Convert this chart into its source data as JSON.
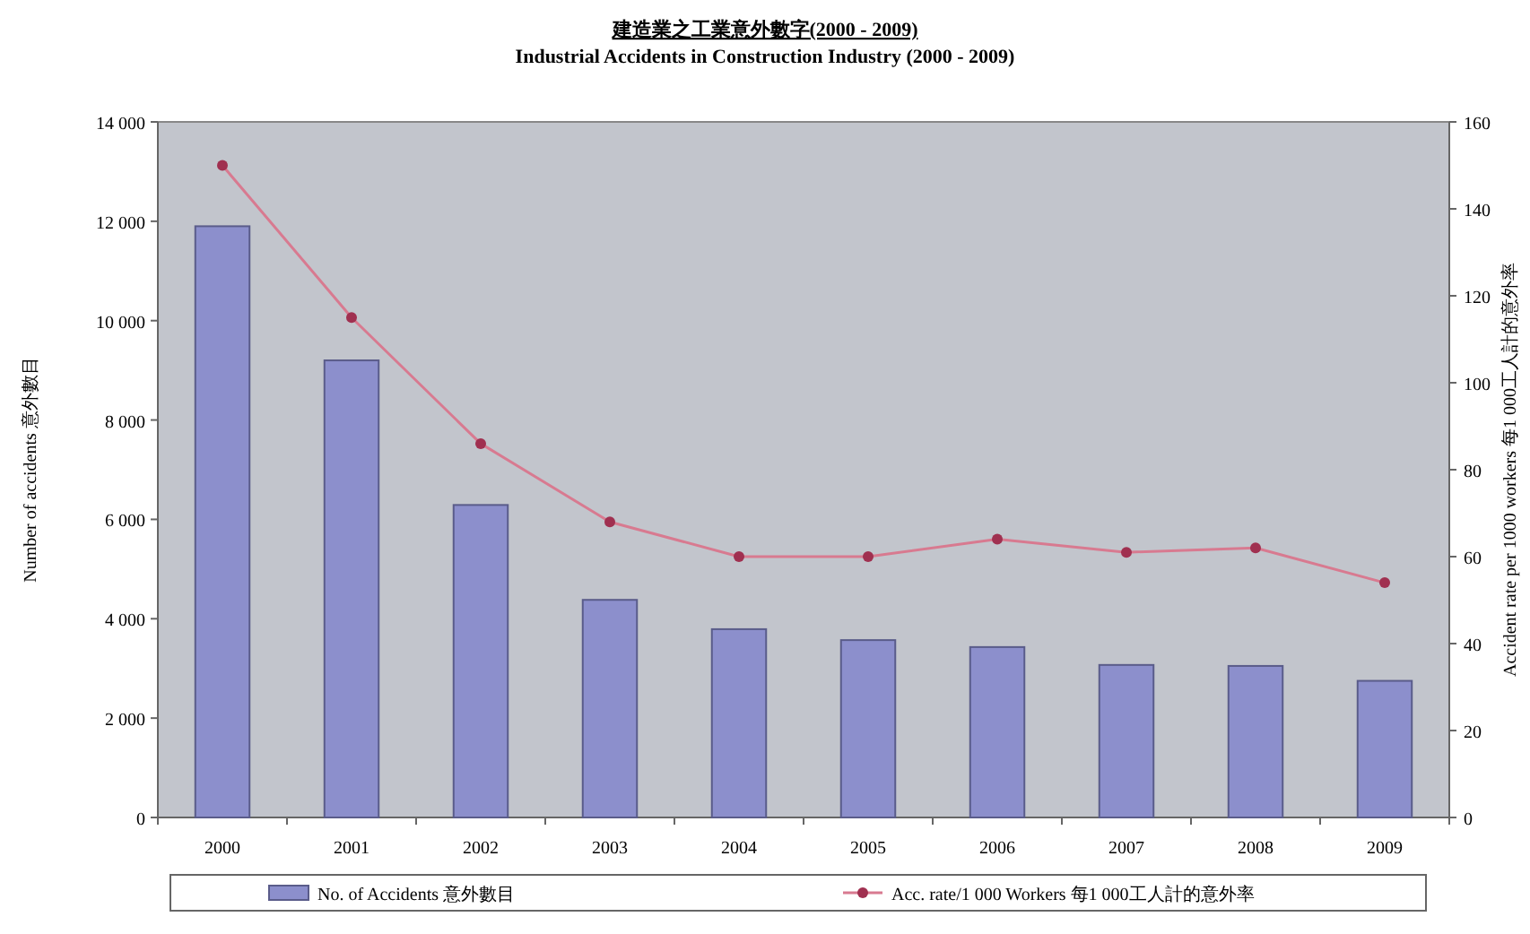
{
  "chart_data": {
    "type": "bar",
    "title": "建造業之工業意外數字(2000 - 2009)",
    "subtitle": "Industrial Accidents in Construction Industry (2000 - 2009)",
    "categories": [
      "2000",
      "2001",
      "2002",
      "2003",
      "2004",
      "2005",
      "2006",
      "2007",
      "2008",
      "2009"
    ],
    "series": [
      {
        "name": "No. of Accidents 意外數目",
        "color": "#8c8fcc",
        "values": [
          11900,
          9200,
          6290,
          4380,
          3790,
          3570,
          3430,
          3070,
          3050,
          2750
        ]
      },
      {
        "name": "Acc. rate/1 000 Workers 每1 000工人計的意外率",
        "type": "line",
        "axis": "y2",
        "color": "#d87a90",
        "marker": "circle",
        "values": [
          150,
          115,
          86,
          68,
          60,
          60,
          64,
          61,
          62,
          54
        ]
      }
    ],
    "ylabel": "Number of accidents 意外數目",
    "y2label": "Accident rate per 1000 workers 每1 000工人計的意外率",
    "ylim": [
      0,
      14000
    ],
    "yticks": [
      0,
      {
        "value": 2000,
        "label": "2 000"
      },
      {
        "value": 4000,
        "label": "4 000"
      },
      {
        "value": 6000,
        "label": "6 000"
      },
      {
        "value": 8000,
        "label": "8 000"
      },
      {
        "value": 10000,
        "label": "10 000"
      },
      {
        "value": 12000,
        "label": "12 000"
      },
      {
        "value": 14000,
        "label": "14 000"
      }
    ],
    "y2lim": [
      0,
      160
    ],
    "y2ticks": [
      0,
      20,
      40,
      60,
      80,
      100,
      120,
      140,
      160
    ],
    "grid": false,
    "legend": "bottom"
  }
}
